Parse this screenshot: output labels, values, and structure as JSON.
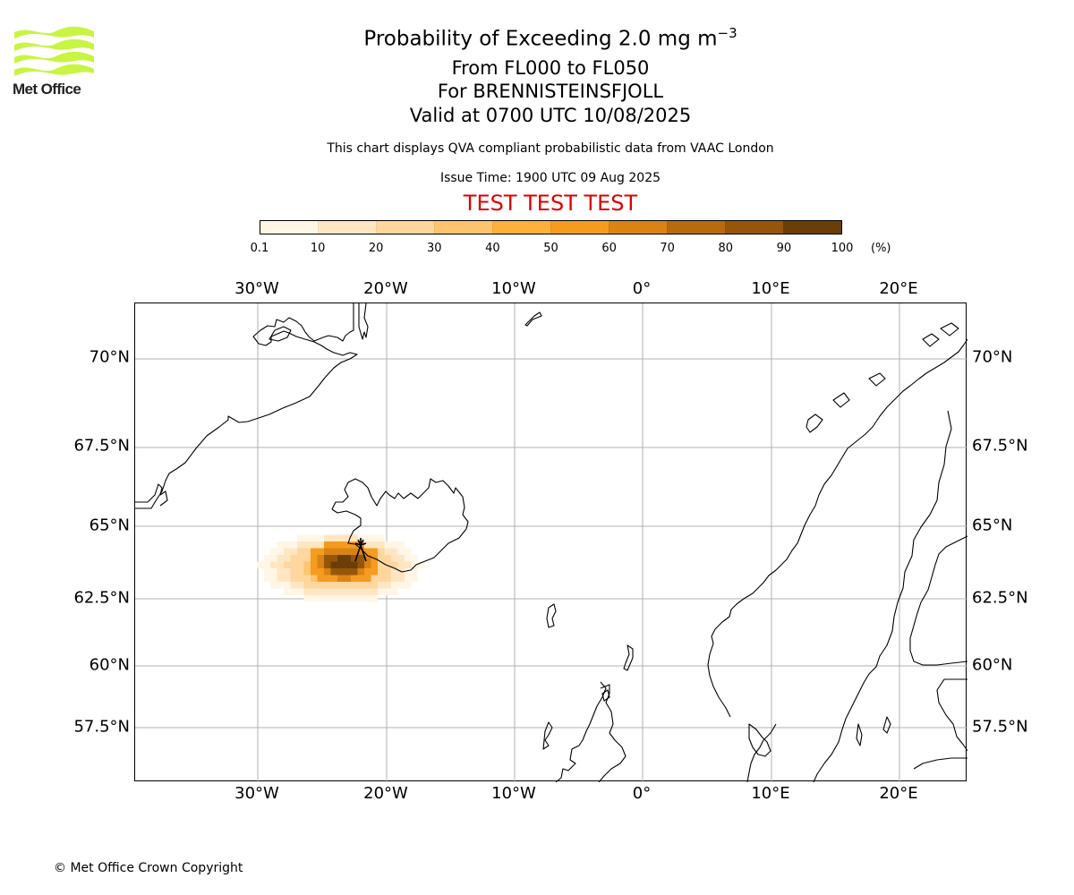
{
  "branding": {
    "logo_text": "Met Office",
    "logo_color": "#c8f542"
  },
  "header": {
    "title_main": "Probability of Exceeding 2.0 mg m",
    "title_sup": "−3",
    "line2": "From FL000 to FL050",
    "line3": "For BRENNISTEINSFJOLL",
    "line4": "Valid at 0700 UTC 10/08/2025",
    "info": "This chart displays QVA compliant probabilistic data from VAAC London",
    "issue": "Issue Time: 1900 UTC 09 Aug 2025",
    "test_banner": "TEST TEST TEST",
    "test_color": "#dd0000"
  },
  "colorbar": {
    "ticks": [
      "0.1",
      "10",
      "20",
      "30",
      "40",
      "50",
      "60",
      "70",
      "80",
      "90",
      "100"
    ],
    "unit": "(%)",
    "colors": [
      "#fff6e6",
      "#ffe6c2",
      "#ffd69e",
      "#ffc46e",
      "#ffb03c",
      "#f59b1e",
      "#d98314",
      "#b86b0e",
      "#96560a",
      "#6b3d07"
    ]
  },
  "map": {
    "lon_labels": [
      "30°W",
      "20°W",
      "10°W",
      "0°",
      "10°E",
      "20°E"
    ],
    "lat_labels": [
      "70°N",
      "67.5°N",
      "65°N",
      "62.5°N",
      "60°N",
      "57.5°N"
    ],
    "source_label": "BRENNISTEINSFJOLL",
    "source_icon": "volcano-icon"
  },
  "footer": {
    "copyright": "© Met Office Crown Copyright"
  }
}
